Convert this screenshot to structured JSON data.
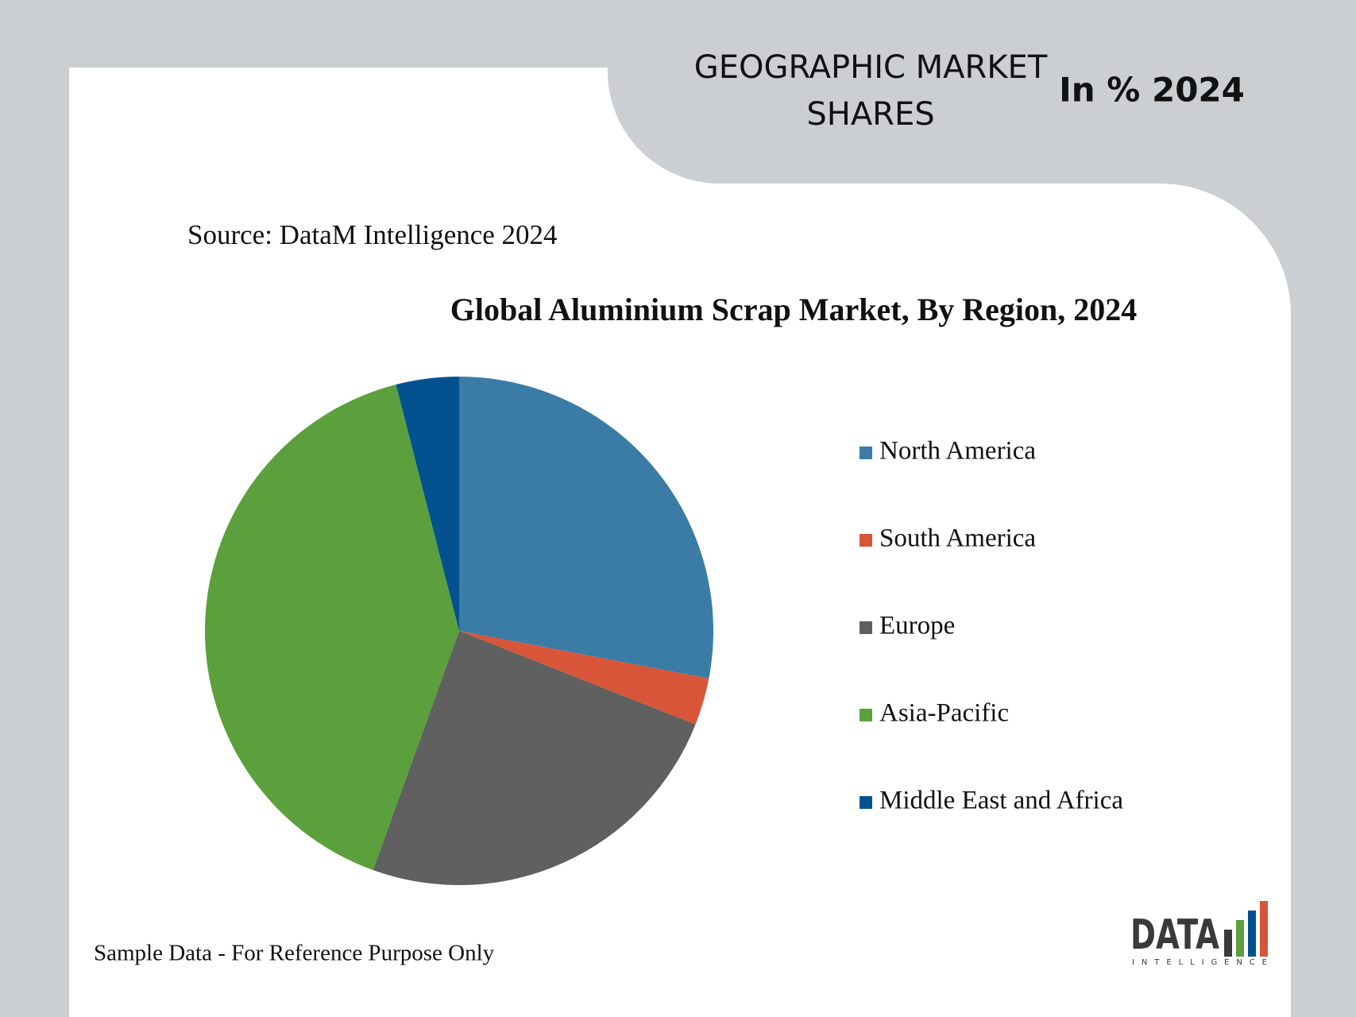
{
  "header": [
    "GEOGRAPHIC MARKET",
    "SHARES"
  ],
  "badge": "In % 2024",
  "source": "Source: DataM Intelligence 2024",
  "footer": "Sample Data - For Reference Purpose Only",
  "logo": {
    "name": "DATA",
    "tagline": "INTELLIGENCE"
  },
  "chart_data": {
    "type": "pie",
    "title": "Global Aluminium Scrap Market, By Region, 2024",
    "categories": [
      "North America",
      "South America",
      "Europe",
      "Asia-Pacific",
      "Middle East and Africa"
    ],
    "values": [
      28,
      3,
      24.5,
      40.5,
      4
    ],
    "colors": [
      "#3a7ca5",
      "#d9553a",
      "#606060",
      "#5ba03c",
      "#03528f"
    ]
  }
}
